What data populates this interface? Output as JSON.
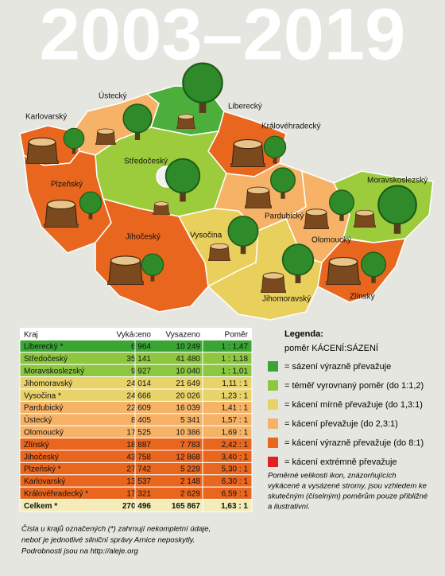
{
  "title": "2003–2019",
  "map": {
    "regions": [
      "Karlovarský",
      "Ústecký",
      "Liberecký",
      "Královéhradecký",
      "Středočeský",
      "Plzeňský",
      "Pardubický",
      "Moravskoslezský",
      "Jihočeský",
      "Vysočina",
      "Olomoucký",
      "Jihomoravský",
      "Zlínský"
    ]
  },
  "table": {
    "header": [
      "Kraj",
      "Vykáceno",
      "Vysazeno",
      "Poměr"
    ],
    "rows": [
      [
        "Liberecký *",
        "6 964",
        "10 249",
        "1 : 1,47"
      ],
      [
        "Středočeský",
        "35 141",
        "41 480",
        "1 : 1,18"
      ],
      [
        "Moravskoslezský",
        "9 927",
        "10 040",
        "1 : 1,01"
      ],
      [
        "Jihomoravský",
        "24 014",
        "21 649",
        "1,11 : 1"
      ],
      [
        "Vysočina *",
        "24 666",
        "20 026",
        "1,23 : 1"
      ],
      [
        "Pardubický",
        "22 609",
        "16 039",
        "1,41 : 1"
      ],
      [
        "Ústecký",
        "8 405",
        "5 341",
        "1,57 : 1"
      ],
      [
        "Olomoucký",
        "17 525",
        "10 386",
        "1,69 : 1"
      ],
      [
        "Zlínský",
        "18 887",
        "7 783",
        "2,42 : 1"
      ],
      [
        "Jihočeský",
        "43 758",
        "12 868",
        "3,40 : 1"
      ],
      [
        "Plzeňský *",
        "27 742",
        "5 229",
        "5,30 : 1"
      ],
      [
        "Karlovarský",
        "13 537",
        "2 148",
        "6,30 : 1"
      ],
      [
        "Královéhradecký *",
        "17 321",
        "2 629",
        "6,59 : 1"
      ],
      [
        "Celkem *",
        "270 496",
        "165 867",
        "1,63 : 1"
      ]
    ],
    "row_colors": [
      "#3aa535",
      "#8dc63f",
      "#8dc63f",
      "#e8d26a",
      "#e8d26a",
      "#f6b266",
      "#f6b266",
      "#f6b266",
      "#e8661e",
      "#e8661e",
      "#e8661e",
      "#e8661e",
      "#e8661e",
      "#f3ecb8"
    ]
  },
  "legend": {
    "title": "Legenda:",
    "subtitle": "poměr KÁCENÍ:SÁZENÍ",
    "items": [
      {
        "color": "#3aa535",
        "label": "= sázení výrazně převažuje"
      },
      {
        "color": "#8dc63f",
        "label": "= téměř vyrovnaný poměr (do 1:1,2)"
      },
      {
        "color": "#e8d26a",
        "label": "= kácení mírně převažuje (do 1,3:1)"
      },
      {
        "color": "#f6b266",
        "label": "= kácení převažuje (do 2,3:1)"
      },
      {
        "color": "#e8661e",
        "label": "= kácení výrazně převažuje (do 8:1)"
      },
      {
        "color": "#e31e24",
        "label": "= kácení extrémně převažuje"
      }
    ],
    "note": [
      "Poměrné velikosti ikon, znázorňujících",
      "vykácené a vysázené stromy, jsou vzhledem ke",
      "skutečným (číselným) poměrům pouze přibližné",
      "a ilustrativní."
    ]
  },
  "footnote": [
    "Čísla u krajů označených (*) zahrnují nekompletní údaje,",
    "neboť je jednotlivé silniční správy Arnice neposkytly.",
    "Podrobnosti jsou na http://aleje.org"
  ]
}
